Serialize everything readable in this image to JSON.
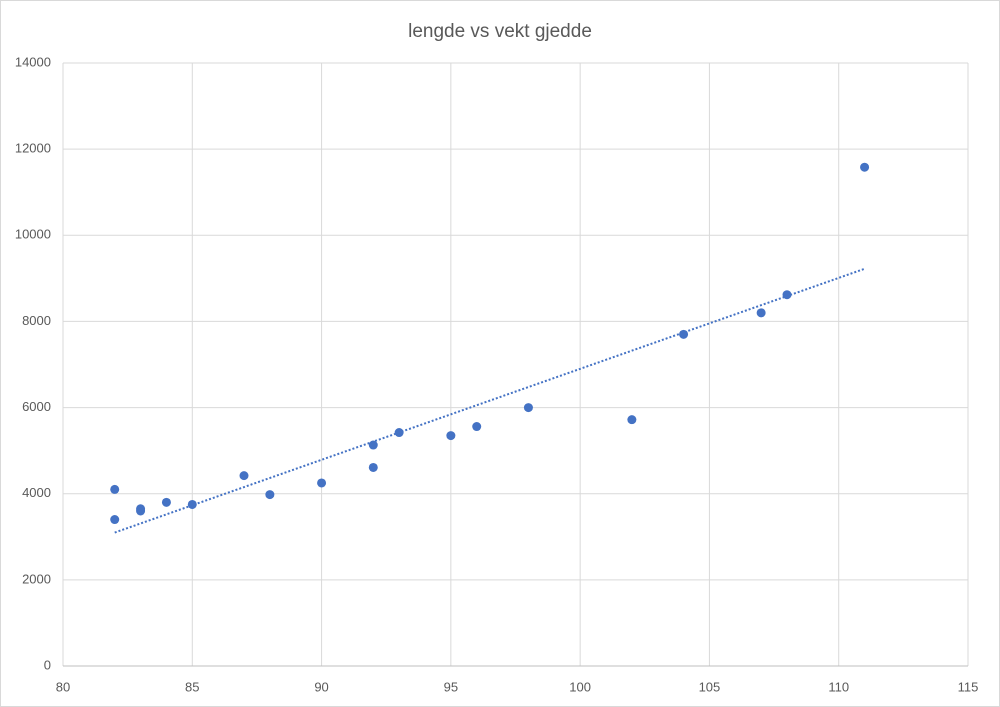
{
  "chart_data": {
    "type": "scatter",
    "title": "lengde vs vekt gjedde",
    "series": [
      {
        "color": "#4472c4",
        "x": [
          82,
          82,
          83,
          83,
          84,
          85,
          87,
          88,
          90,
          92,
          92,
          93,
          95,
          96,
          98,
          102,
          104,
          107,
          108,
          111
        ],
        "values": [
          4100,
          3400,
          3650,
          3600,
          3800,
          3750,
          4420,
          3980,
          4250,
          5130,
          4610,
          5420,
          5350,
          5560,
          6000,
          5720,
          7700,
          8200,
          8620,
          11580
        ]
      }
    ],
    "trendline": "linear",
    "xlim": [
      80,
      115
    ],
    "xticks": [
      80,
      85,
      90,
      95,
      100,
      105,
      110,
      115
    ],
    "ylim": [
      0,
      14000
    ],
    "yticks": [
      0,
      2000,
      4000,
      6000,
      8000,
      10000,
      12000,
      14000
    ],
    "grid": true
  }
}
